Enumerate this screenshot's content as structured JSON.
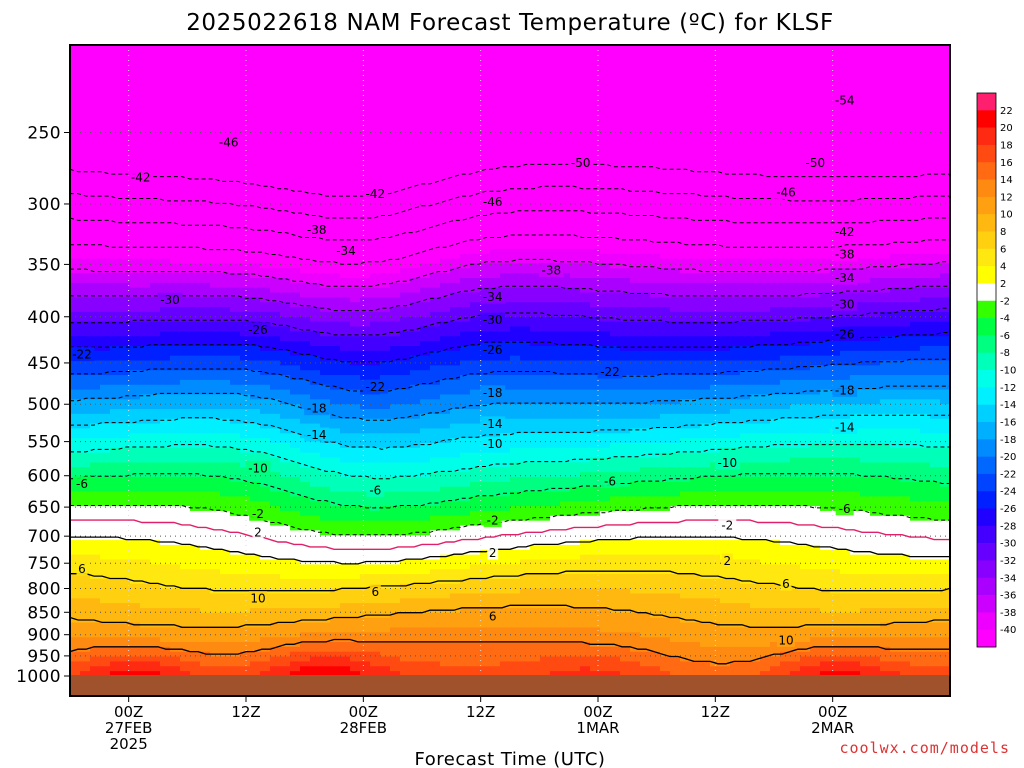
{
  "chart_data": {
    "type": "heatmap",
    "title": "2025022618 NAM Forecast Temperature (ºC) for KLSF",
    "xlabel": "Forecast Time (UTC)",
    "credit": "coolwx.com/models",
    "y_scale": "log-pressure",
    "y_inverted": true,
    "ylim": [
      200,
      1000
    ],
    "yticks": [
      250,
      300,
      350,
      400,
      450,
      500,
      550,
      600,
      650,
      700,
      750,
      800,
      850,
      900,
      950,
      1000
    ],
    "xlim": [
      "2025-02-26T18Z",
      "2025-03-02T12Z"
    ],
    "xticks": [
      {
        "time": "2025-02-27T00Z",
        "lines": [
          "00Z",
          "27FEB",
          "2025"
        ]
      },
      {
        "time": "2025-02-27T12Z",
        "lines": [
          "12Z"
        ]
      },
      {
        "time": "2025-02-28T00Z",
        "lines": [
          "00Z",
          "28FEB"
        ]
      },
      {
        "time": "2025-02-28T12Z",
        "lines": [
          "12Z"
        ]
      },
      {
        "time": "2025-03-01T00Z",
        "lines": [
          "00Z",
          "1MAR"
        ]
      },
      {
        "time": "2025-03-01T12Z",
        "lines": [
          "12Z"
        ]
      },
      {
        "time": "2025-03-02T00Z",
        "lines": [
          "00Z",
          "2MAR"
        ]
      }
    ],
    "grid": true,
    "colorbar": {
      "placement": "right",
      "labels": [
        "22",
        "20",
        "18",
        "16",
        "14",
        "12",
        "10",
        "8",
        "6",
        "4",
        "2",
        "-2",
        "-4",
        "-6",
        "-8",
        "-10",
        "-12",
        "-14",
        "-16",
        "-18",
        "-20",
        "-22",
        "-24",
        "-26",
        "-28",
        "-30",
        "-32",
        "-34",
        "-36",
        "-38",
        "-40"
      ],
      "bins": [
        {
          "from": 22,
          "to": 24,
          "color": "#ff1f6f"
        },
        {
          "from": 20,
          "to": 22,
          "color": "#ff0000"
        },
        {
          "from": 18,
          "to": 20,
          "color": "#ff2a12"
        },
        {
          "from": 16,
          "to": 18,
          "color": "#ff4a12"
        },
        {
          "from": 14,
          "to": 16,
          "color": "#ff6a12"
        },
        {
          "from": 12,
          "to": 14,
          "color": "#ff8a12"
        },
        {
          "from": 10,
          "to": 12,
          "color": "#ffa010"
        },
        {
          "from": 8,
          "to": 10,
          "color": "#ffb810"
        },
        {
          "from": 6,
          "to": 8,
          "color": "#ffd010"
        },
        {
          "from": 4,
          "to": 6,
          "color": "#ffe810"
        },
        {
          "from": 2,
          "to": 4,
          "color": "#ffff00"
        },
        {
          "from": -2,
          "to": 2,
          "color": "#ffffff"
        },
        {
          "from": -4,
          "to": -2,
          "color": "#33ff00"
        },
        {
          "from": -6,
          "to": -4,
          "color": "#00ff44"
        },
        {
          "from": -8,
          "to": -6,
          "color": "#00ff80"
        },
        {
          "from": -10,
          "to": -8,
          "color": "#00ffb8"
        },
        {
          "from": -12,
          "to": -10,
          "color": "#00ffe8"
        },
        {
          "from": -14,
          "to": -12,
          "color": "#00f0ff"
        },
        {
          "from": -16,
          "to": -14,
          "color": "#00d0ff"
        },
        {
          "from": -18,
          "to": -16,
          "color": "#00b0ff"
        },
        {
          "from": -20,
          "to": -18,
          "color": "#008cff"
        },
        {
          "from": -22,
          "to": -20,
          "color": "#0068ff"
        },
        {
          "from": -24,
          "to": -22,
          "color": "#0044ff"
        },
        {
          "from": -26,
          "to": -24,
          "color": "#0020ff"
        },
        {
          "from": -28,
          "to": -26,
          "color": "#2000ff"
        },
        {
          "from": -30,
          "to": -28,
          "color": "#4400ff"
        },
        {
          "from": -32,
          "to": -30,
          "color": "#6600ff"
        },
        {
          "from": -34,
          "to": -32,
          "color": "#8800ff"
        },
        {
          "from": -36,
          "to": -34,
          "color": "#aa00ff"
        },
        {
          "from": -38,
          "to": -36,
          "color": "#cc00ff"
        },
        {
          "from": -40,
          "to": -38,
          "color": "#ee00ff"
        },
        {
          "from": -70,
          "to": -40,
          "color": "#ff00ff"
        }
      ]
    },
    "ground_color": "#a0522d",
    "contour_labels": [
      {
        "text": "-54",
        "time": "2025-03-02T00Z",
        "p": 230
      },
      {
        "text": "-46",
        "time": "2025-02-27T09Z",
        "p": 256
      },
      {
        "text": "-50",
        "time": "2025-02-28T21Z",
        "p": 270
      },
      {
        "text": "-50",
        "time": "2025-03-01T21Z",
        "p": 270
      },
      {
        "text": "-42",
        "time": "2025-02-27T00Z",
        "p": 280
      },
      {
        "text": "-42",
        "time": "2025-02-28T00Z",
        "p": 292
      },
      {
        "text": "-46",
        "time": "2025-02-28T12Z",
        "p": 298
      },
      {
        "text": "-46",
        "time": "2025-03-01T18Z",
        "p": 291
      },
      {
        "text": "-38",
        "time": "2025-02-27T18Z",
        "p": 320
      },
      {
        "text": "-42",
        "time": "2025-03-02T00Z",
        "p": 322
      },
      {
        "text": "-34",
        "time": "2025-02-27T21Z",
        "p": 338
      },
      {
        "text": "-38",
        "time": "2025-03-02T00Z",
        "p": 341
      },
      {
        "text": "-38",
        "time": "2025-02-28T18Z",
        "p": 355
      },
      {
        "text": "-34",
        "time": "2025-03-02T00Z",
        "p": 362
      },
      {
        "text": "-30",
        "time": "2025-02-27T03Z",
        "p": 383
      },
      {
        "text": "-34",
        "time": "2025-02-28T12Z",
        "p": 380
      },
      {
        "text": "-30",
        "time": "2025-03-02T00Z",
        "p": 387
      },
      {
        "text": "-30",
        "time": "2025-02-28T12Z",
        "p": 403
      },
      {
        "text": "-26",
        "time": "2025-02-27T12Z",
        "p": 413
      },
      {
        "text": "-26",
        "time": "2025-03-02T00Z",
        "p": 418
      },
      {
        "text": "-26",
        "time": "2025-02-28T12Z",
        "p": 435
      },
      {
        "text": "-22",
        "time": "2025-02-26T18Z",
        "p": 440
      },
      {
        "text": "-22",
        "time": "2025-03-01T00Z",
        "p": 460
      },
      {
        "text": "-22",
        "time": "2025-02-28T00Z",
        "p": 478
      },
      {
        "text": "-18",
        "time": "2025-02-28T12Z",
        "p": 485
      },
      {
        "text": "-18",
        "time": "2025-03-02T00Z",
        "p": 482
      },
      {
        "text": "-18",
        "time": "2025-02-27T18Z",
        "p": 505
      },
      {
        "text": "-14",
        "time": "2025-02-28T12Z",
        "p": 525
      },
      {
        "text": "-14",
        "time": "2025-03-02T00Z",
        "p": 530
      },
      {
        "text": "-14",
        "time": "2025-02-27T18Z",
        "p": 540
      },
      {
        "text": "-10",
        "time": "2025-02-28T12Z",
        "p": 553
      },
      {
        "text": "-10",
        "time": "2025-02-27T12Z",
        "p": 588
      },
      {
        "text": "-10",
        "time": "2025-03-01T12Z",
        "p": 580
      },
      {
        "text": "-6",
        "time": "2025-02-28T00Z",
        "p": 622
      },
      {
        "text": "-6",
        "time": "2025-03-01T00Z",
        "p": 608
      },
      {
        "text": "-6",
        "time": "2025-02-26T18Z",
        "p": 612
      },
      {
        "text": "-6",
        "time": "2025-03-02T00Z",
        "p": 652
      },
      {
        "text": "-2",
        "time": "2025-02-27T12Z",
        "p": 661
      },
      {
        "text": "-2",
        "time": "2025-02-28T12Z",
        "p": 672
      },
      {
        "text": "-2",
        "time": "2025-03-01T12Z",
        "p": 680
      },
      {
        "text": "2",
        "time": "2025-02-27T12Z",
        "p": 693
      },
      {
        "text": "2",
        "time": "2025-02-28T12Z",
        "p": 730
      },
      {
        "text": "2",
        "time": "2025-03-01T12Z",
        "p": 745
      },
      {
        "text": "6",
        "time": "2025-02-26T18Z",
        "p": 760
      },
      {
        "text": "6",
        "time": "2025-03-01T18Z",
        "p": 790
      },
      {
        "text": "10",
        "time": "2025-02-27T12Z",
        "p": 820
      },
      {
        "text": "6",
        "time": "2025-02-28T00Z",
        "p": 806
      },
      {
        "text": "6",
        "time": "2025-02-28T12Z",
        "p": 858
      },
      {
        "text": "10",
        "time": "2025-03-01T18Z",
        "p": 912
      }
    ]
  }
}
